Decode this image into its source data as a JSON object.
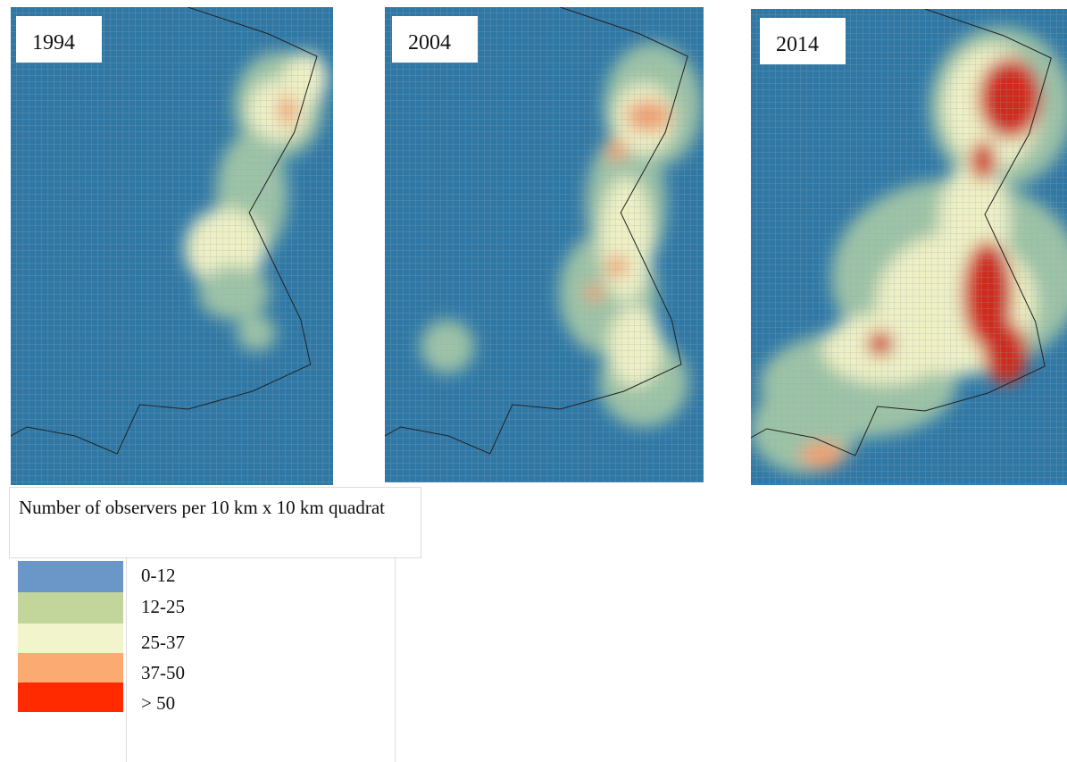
{
  "maps": [
    {
      "label": "1994"
    },
    {
      "label": "2004"
    },
    {
      "label": "2014"
    }
  ],
  "legend": {
    "title": "Number of observers per 10 km x 10 km quadrat",
    "items": [
      {
        "label": "0-12",
        "color": "#6b97c8"
      },
      {
        "label": "12-25",
        "color": "#c2d69b"
      },
      {
        "label": "25-37",
        "color": "#f2f5cc"
      },
      {
        "label": "37-50",
        "color": "#fbab72"
      },
      {
        "label": "> 50",
        "color": "#ff2a00"
      }
    ]
  }
}
